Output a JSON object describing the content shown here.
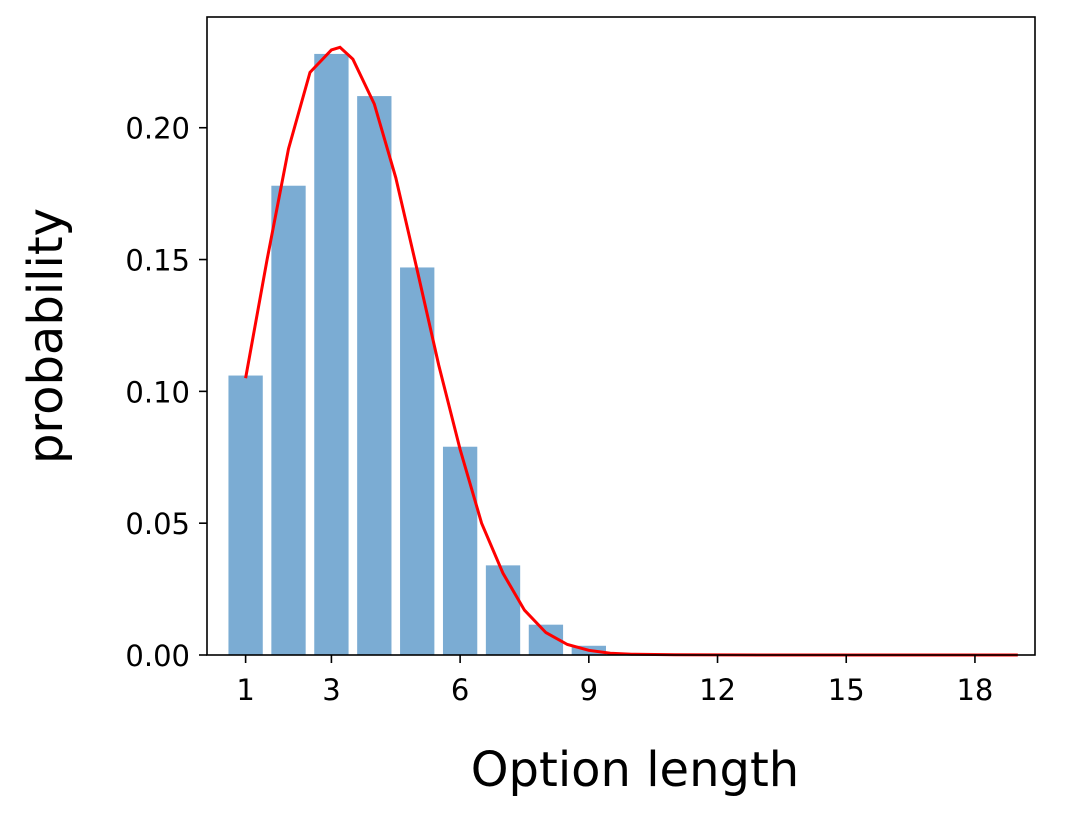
{
  "chart_data": {
    "type": "bar",
    "xlabel": "Option length",
    "ylabel": "probability",
    "x": [
      1,
      2,
      3,
      4,
      5,
      6,
      7,
      8,
      9
    ],
    "values": [
      0.106,
      0.178,
      0.228,
      0.212,
      0.147,
      0.079,
      0.034,
      0.0115,
      0.0035
    ],
    "xlim": [
      0.1,
      19.4
    ],
    "ylim": [
      0,
      0.242
    ],
    "xticks": [
      1,
      3,
      6,
      9,
      12,
      15,
      18
    ],
    "yticks": [
      0.0,
      0.05,
      0.1,
      0.15,
      0.2
    ],
    "ytick_labels": [
      "0.00",
      "0.05",
      "0.10",
      "0.15",
      "0.20"
    ],
    "bar_color": "#7bacd3",
    "fit_curve": {
      "color": "#ff0000",
      "x": [
        1,
        1.5,
        2,
        2.5,
        3,
        3.2,
        3.5,
        4,
        4.5,
        5,
        5.5,
        6,
        6.5,
        7,
        7.5,
        8,
        8.5,
        9,
        9.5,
        10,
        11,
        12,
        13,
        14,
        15,
        16,
        17,
        18,
        19
      ],
      "y": [
        0.105,
        0.15,
        0.192,
        0.221,
        0.2295,
        0.2305,
        0.226,
        0.209,
        0.181,
        0.146,
        0.11,
        0.078,
        0.05,
        0.031,
        0.017,
        0.0085,
        0.004,
        0.0018,
        0.0007,
        0.0003,
        0.0001,
        3e-05,
        0,
        0,
        0,
        0,
        0,
        0,
        0
      ]
    },
    "grid": false,
    "legend": "none"
  }
}
